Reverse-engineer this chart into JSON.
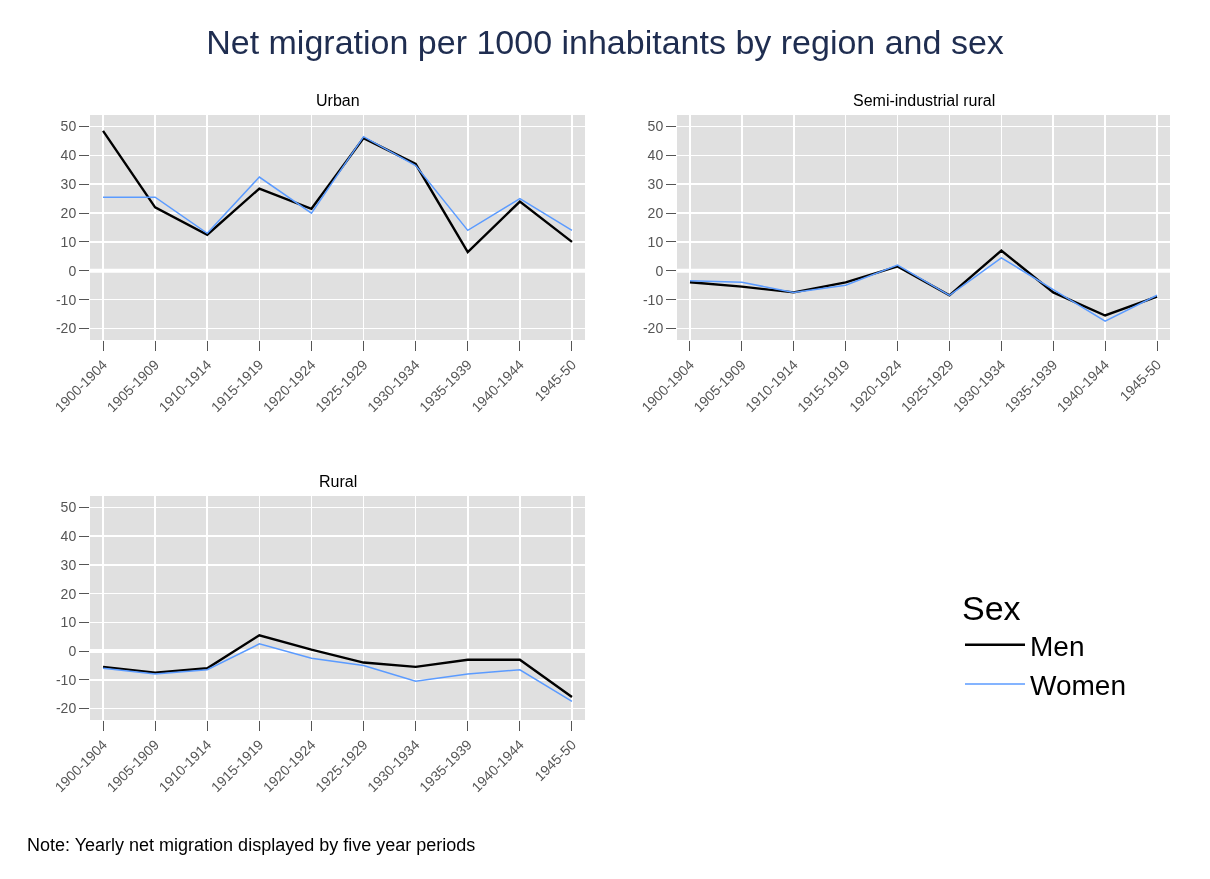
{
  "chart_data": [
    {
      "type": "line",
      "title": "Net migration per 1000 inhabitants by region and sex",
      "subtitle": "Urban",
      "categories": [
        "1900-1904",
        "1905-1909",
        "1910-1914",
        "1915-1919",
        "1920-1924",
        "1925-1929",
        "1930-1934",
        "1935-1939",
        "1940-1944",
        "1945-50"
      ],
      "series": [
        {
          "color": "#000000",
          "values": [
            48.5,
            22,
            12.5,
            28.5,
            21.5,
            46,
            37,
            6.5,
            24,
            10
          ]
        },
        {
          "color": "#5b9bff",
          "values": [
            25.5,
            25.5,
            13,
            32.5,
            20,
            46.5,
            36.5,
            14,
            25,
            14
          ]
        }
      ],
      "ylim": [
        -24,
        54
      ],
      "yticks": [
        -20,
        -10,
        0,
        10,
        20,
        30,
        40,
        50
      ],
      "grid": true,
      "ref_lines": [
        {
          "axis": "y",
          "value": 0,
          "color": "#ffffff"
        }
      ],
      "line_style": "solid"
    },
    {
      "type": "line",
      "subtitle": "Semi-industrial rural",
      "categories": [
        "1900-1904",
        "1905-1909",
        "1910-1914",
        "1915-1919",
        "1920-1924",
        "1925-1929",
        "1930-1934",
        "1935-1939",
        "1940-1944",
        "1945-50"
      ],
      "series": [
        {
          "color": "#000000",
          "values": [
            -4,
            -5.5,
            -7.5,
            -4,
            1.5,
            -8.5,
            7,
            -7.5,
            -15.5,
            -9
          ]
        },
        {
          "color": "#5b9bff",
          "values": [
            -3.5,
            -4,
            -7.5,
            -5,
            2,
            -8.5,
            4.5,
            -6.5,
            -17.5,
            -8.5
          ]
        }
      ],
      "ylim": [
        -24,
        54
      ],
      "yticks": [
        -20,
        -10,
        0,
        10,
        20,
        30,
        40,
        50
      ],
      "grid": true,
      "ref_lines": [
        {
          "axis": "y",
          "value": 0,
          "color": "#ffffff"
        }
      ],
      "line_style": "solid"
    },
    {
      "type": "line",
      "subtitle": "Rural",
      "categories": [
        "1900-1904",
        "1905-1909",
        "1910-1914",
        "1915-1919",
        "1920-1924",
        "1925-1929",
        "1930-1934",
        "1935-1939",
        "1940-1944",
        "1945-50"
      ],
      "series": [
        {
          "name": "Men",
          "color": "#000000",
          "values": [
            -5.5,
            -7.5,
            -6,
            5.5,
            0.5,
            -4,
            -5.5,
            -3,
            -3,
            -16
          ]
        },
        {
          "name": "Women",
          "color": "#5b9bff",
          "values": [
            -6,
            -8,
            -6.5,
            2.5,
            -2.5,
            -5,
            -10.5,
            -8,
            -6.5,
            -17.5
          ]
        }
      ],
      "ylim": [
        -24,
        54
      ],
      "yticks": [
        -20,
        -10,
        0,
        10,
        20,
        30,
        40,
        50
      ],
      "grid": true,
      "ref_lines": [
        {
          "axis": "y",
          "value": 0,
          "color": "#ffffff"
        }
      ],
      "line_style": "solid",
      "legend": "bottom right",
      "legend_title": "Sex",
      "annotations": [
        "Note: Yearly net migration displayed by five year periods"
      ]
    }
  ]
}
